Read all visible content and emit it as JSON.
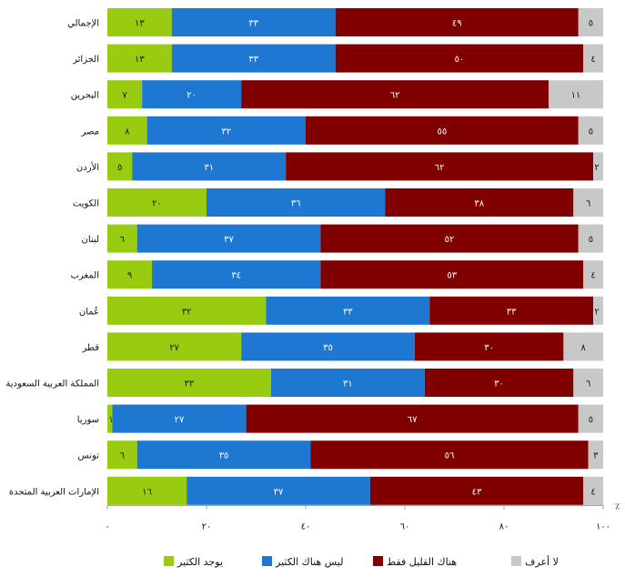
{
  "chart_data": {
    "type": "bar",
    "orientation": "horizontal",
    "stacked": true,
    "categories": [
      "الإجمالي",
      "الجزائر",
      "البحرين",
      "مصر",
      "الأردن",
      "الكويت",
      "لبنان",
      "المغرب",
      "عُمان",
      "قطر",
      "المملكة العربية السعودية",
      "سوريا",
      "تونس",
      "الإمارات العربية المتحدة"
    ],
    "series": [
      {
        "name": "يوجد الكثير",
        "color": "#99cc11",
        "label_color": "#1a1a1a",
        "values": [
          13,
          13,
          7,
          8,
          5,
          20,
          6,
          9,
          32,
          27,
          33,
          1,
          6,
          16
        ],
        "labels": [
          "١٣",
          "١٣",
          "٧",
          "٨",
          "٥",
          "٢٠",
          "٦",
          "٩",
          "٣٢",
          "٢٧",
          "٣٣",
          "١",
          "٦",
          "١٦"
        ]
      },
      {
        "name": "ليس هناك الكثير",
        "color": "#1e78d2",
        "label_color": "#ffffff",
        "values": [
          33,
          33,
          20,
          32,
          31,
          36,
          37,
          34,
          33,
          35,
          31,
          27,
          35,
          37
        ],
        "labels": [
          "٣٣",
          "٣٣",
          "٢٠",
          "٣٢",
          "٣١",
          "٣٦",
          "٣٧",
          "٣٤",
          "٣٣",
          "٣٥",
          "٣١",
          "٢٧",
          "٣٥",
          "٣٧"
        ]
      },
      {
        "name": "هناك القليل فقط",
        "color": "#800000",
        "label_color": "#ffffff",
        "values": [
          49,
          50,
          62,
          55,
          62,
          38,
          52,
          53,
          33,
          30,
          30,
          67,
          56,
          43
        ],
        "labels": [
          "٤٩",
          "٥٠",
          "٦٢",
          "٥٥",
          "٦٢",
          "٣٨",
          "٥٢",
          "٥٣",
          "٣٣",
          "٣٠",
          "٣٠",
          "٦٧",
          "٥٦",
          "٤٣"
        ]
      },
      {
        "name": "لا أعرف",
        "color": "#c8c8c8",
        "label_color": "#1a1a1a",
        "values": [
          5,
          4,
          11,
          5,
          2,
          6,
          5,
          4,
          2,
          8,
          6,
          5,
          3,
          4
        ],
        "labels": [
          "٥",
          "٤",
          "١١",
          "٥",
          "٢",
          "٦",
          "٥",
          "٤",
          "٢",
          "٨",
          "٦",
          "٥",
          "٣",
          "٤"
        ]
      }
    ],
    "xlim": [
      0,
      100
    ],
    "xticks": [
      0,
      20,
      40,
      60,
      80,
      100
    ],
    "xtick_labels": [
      "٠",
      "٢٠",
      "٤٠",
      "٦٠",
      "٨٠",
      "١٠٠"
    ],
    "unit_label": "٪",
    "legend_position": "bottom",
    "grid": false
  }
}
